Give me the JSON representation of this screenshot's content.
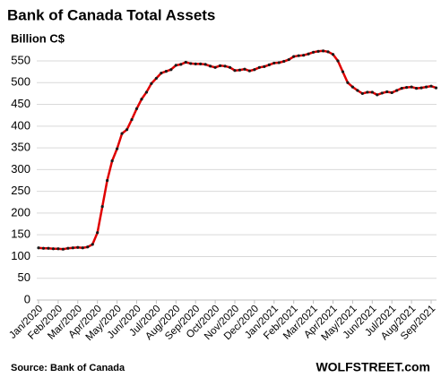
{
  "chart_data": {
    "type": "line",
    "title": "Bank of Canada Total Assets",
    "subtitle": "Billion C$",
    "source": "Source: Bank of Canada",
    "brand": "WOLFSTREET.com",
    "categories": [
      "Jan/2020",
      null,
      null,
      null,
      "Feb/2020",
      null,
      null,
      null,
      "Mar/2020",
      null,
      null,
      null,
      "Apr/2020",
      null,
      null,
      null,
      "May/2020",
      null,
      null,
      null,
      "Jun/2020",
      null,
      null,
      null,
      "Jul/2020",
      null,
      null,
      null,
      "Aug/2020",
      null,
      null,
      null,
      "Sep/2020",
      null,
      null,
      null,
      "Oct/2020",
      null,
      null,
      null,
      "Nov/2020",
      null,
      null,
      null,
      "Dec/2020",
      null,
      null,
      null,
      "Jan/2021",
      null,
      null,
      null,
      "Feb/2021",
      null,
      null,
      null,
      "Mar/2021",
      null,
      null,
      null,
      "Apr/2021",
      null,
      null,
      null,
      "May/2021",
      null,
      null,
      null,
      "Jun/2021",
      null,
      null,
      null,
      "Jul/2021",
      null,
      null,
      null,
      "Aug/2021",
      null,
      null,
      null,
      "Sep/2021",
      null
    ],
    "series": [
      {
        "name": "Total Assets",
        "color": "#e00000",
        "marker_color": "#1a1a1a",
        "values": [
          120,
          119,
          119,
          118,
          118,
          117,
          119,
          120,
          121,
          120,
          122,
          128,
          155,
          215,
          275,
          320,
          348,
          383,
          392,
          415,
          440,
          462,
          478,
          498,
          510,
          522,
          526,
          530,
          540,
          542,
          547,
          544,
          543,
          543,
          542,
          538,
          535,
          539,
          538,
          535,
          528,
          529,
          531,
          527,
          530,
          535,
          537,
          541,
          545,
          546,
          549,
          553,
          560,
          562,
          563,
          566,
          570,
          572,
          573,
          571,
          565,
          550,
          525,
          500,
          490,
          482,
          475,
          478,
          478,
          472,
          476,
          479,
          477,
          482,
          487,
          489,
          490,
          487,
          488,
          490,
          492,
          488
        ]
      }
    ],
    "ylim": [
      0,
      570
    ],
    "yticks": [
      0,
      50,
      100,
      150,
      200,
      250,
      300,
      350,
      400,
      450,
      500,
      550
    ],
    "grid": true
  }
}
